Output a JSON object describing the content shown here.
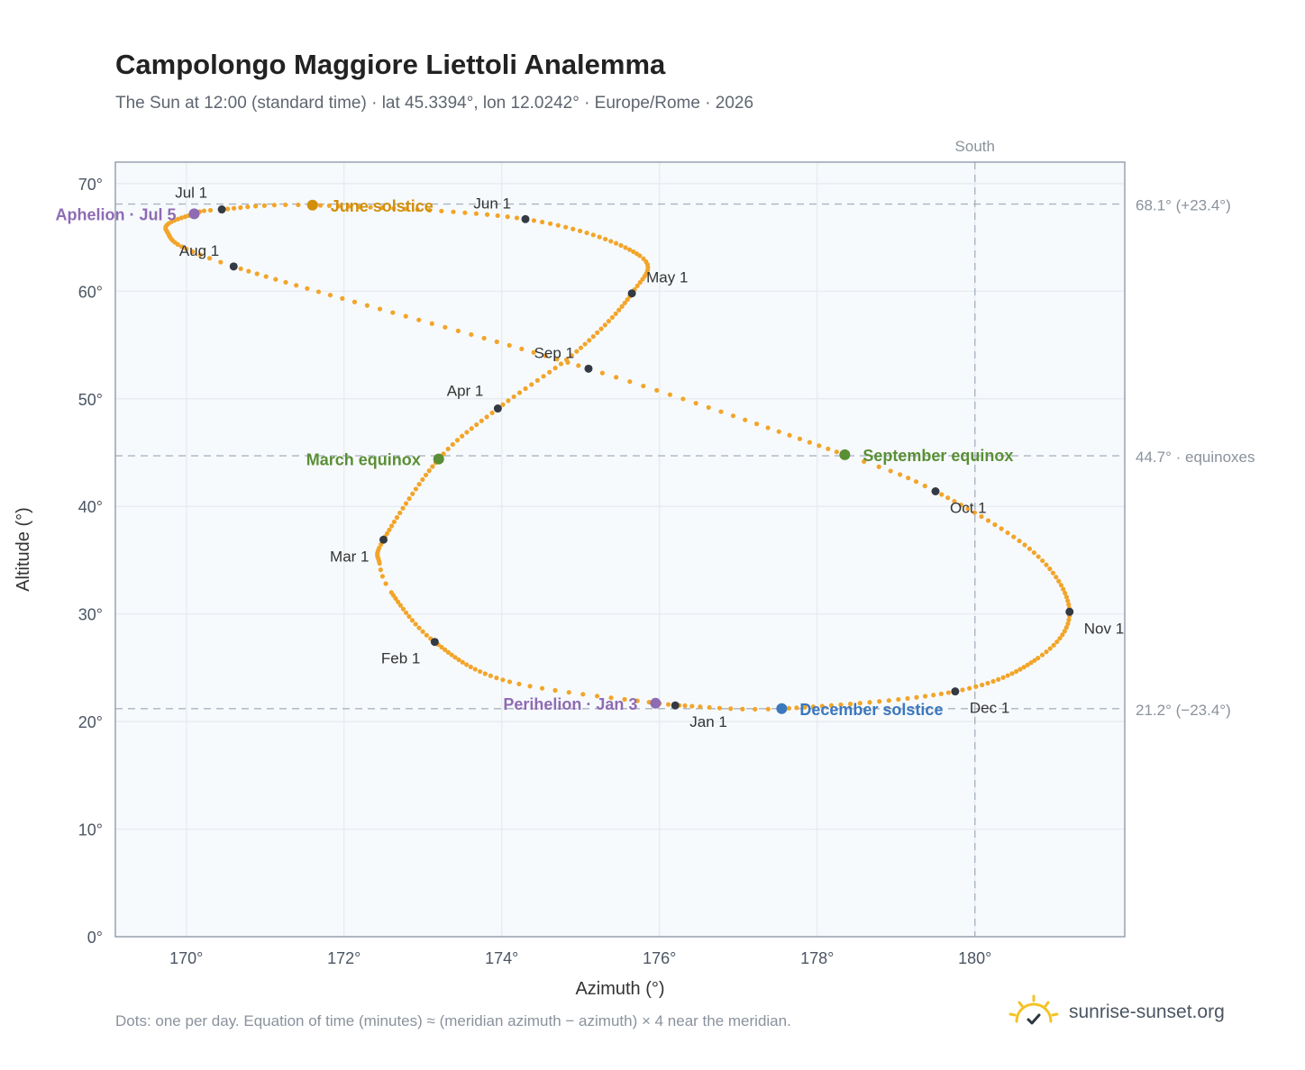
{
  "title": "Campolongo Maggiore Liettoli Analemma",
  "subtitle": "The Sun at 12:00 (standard time) · lat 45.3394°, lon 12.0242° · Europe/Rome · 2026",
  "footnote": "Dots: one per day. Equation of time (minutes) ≈ (meridian azimuth − azimuth) × 4 near the meridian.",
  "brand": {
    "text": "sunrise-sunset.org",
    "icon": "sun-logo-icon"
  },
  "colors": {
    "path": "#f2a52a",
    "month_marker": "#343a44",
    "aphelion": "#8e6bb3",
    "perihelion": "#8e6bb3",
    "june_solstice": "#d18f0c",
    "december_solstice": "#3b78bd",
    "equinox": "#5a8f35",
    "plot_bg": "#f7fafd",
    "grid": "#e6eaef",
    "reference": "#aab4c0"
  },
  "chart_data": {
    "type": "scatter",
    "title": "Campolongo Maggiore Liettoli Analemma",
    "xlabel": "Azimuth (°)",
    "ylabel": "Altitude (°)",
    "xlim": [
      169.1,
      181.9
    ],
    "ylim": [
      0,
      72
    ],
    "x_ticks": [
      170,
      172,
      174,
      176,
      178,
      180
    ],
    "x_tick_labels": [
      "170°",
      "172°",
      "174°",
      "176°",
      "178°",
      "180°"
    ],
    "y_ticks": [
      0,
      10,
      20,
      30,
      40,
      50,
      60,
      70
    ],
    "y_tick_labels": [
      "0°",
      "10°",
      "20°",
      "30°",
      "40°",
      "50°",
      "60°",
      "70°"
    ],
    "grid": true,
    "south_line": {
      "azimuth": 180,
      "label": "South"
    },
    "reference_lines": [
      {
        "altitude": 68.1,
        "label": "68.1° (+23.4°)"
      },
      {
        "altitude": 44.7,
        "label": "44.7° · equinoxes"
      },
      {
        "altitude": 21.2,
        "label": "21.2° (−23.4°)"
      }
    ],
    "path_keypoints": [
      {
        "day": 1,
        "az": 176.2,
        "alt": 21.5
      },
      {
        "day": 15,
        "az": 174.1,
        "alt": 23.7
      },
      {
        "day": 32,
        "az": 173.15,
        "alt": 27.4
      },
      {
        "day": 46,
        "az": 172.6,
        "alt": 32.0
      },
      {
        "day": 50,
        "az": 172.45,
        "alt": 34.7
      },
      {
        "day": 60,
        "az": 172.5,
        "alt": 36.9
      },
      {
        "day": 79,
        "az": 173.2,
        "alt": 44.4
      },
      {
        "day": 91,
        "az": 173.95,
        "alt": 49.1
      },
      {
        "day": 105,
        "az": 174.95,
        "alt": 54.4
      },
      {
        "day": 121,
        "az": 175.65,
        "alt": 59.8
      },
      {
        "day": 133,
        "az": 175.75,
        "alt": 63.3
      },
      {
        "day": 152,
        "az": 174.3,
        "alt": 66.7
      },
      {
        "day": 172,
        "az": 171.6,
        "alt": 68.0
      },
      {
        "day": 182,
        "az": 170.45,
        "alt": 67.6
      },
      {
        "day": 186,
        "az": 170.1,
        "alt": 67.2
      },
      {
        "day": 198,
        "az": 169.75,
        "alt": 65.6
      },
      {
        "day": 213,
        "az": 170.6,
        "alt": 62.3
      },
      {
        "day": 244,
        "az": 175.1,
        "alt": 52.8
      },
      {
        "day": 266,
        "az": 178.35,
        "alt": 44.8
      },
      {
        "day": 274,
        "az": 179.5,
        "alt": 41.4
      },
      {
        "day": 290,
        "az": 180.75,
        "alt": 35.7
      },
      {
        "day": 305,
        "az": 181.2,
        "alt": 30.2
      },
      {
        "day": 318,
        "az": 180.8,
        "alt": 25.9
      },
      {
        "day": 335,
        "az": 179.75,
        "alt": 22.8
      },
      {
        "day": 355,
        "az": 177.55,
        "alt": 21.2
      },
      {
        "day": 365,
        "az": 176.25,
        "alt": 21.5
      }
    ],
    "month_markers": [
      {
        "label": "Jan 1",
        "az": 176.2,
        "alt": 21.5,
        "anchor": "start",
        "dx": 16,
        "dy": 24
      },
      {
        "label": "Feb 1",
        "az": 173.15,
        "alt": 27.4,
        "anchor": "end",
        "dx": -16,
        "dy": 24
      },
      {
        "label": "Mar 1",
        "az": 172.5,
        "alt": 36.9,
        "anchor": "end",
        "dx": -16,
        "dy": 24
      },
      {
        "label": "Apr 1",
        "az": 173.95,
        "alt": 49.1,
        "anchor": "end",
        "dx": -16,
        "dy": -14
      },
      {
        "label": "May 1",
        "az": 175.65,
        "alt": 59.8,
        "anchor": "start",
        "dx": 16,
        "dy": -12
      },
      {
        "label": "Jun 1",
        "az": 174.3,
        "alt": 66.7,
        "anchor": "end",
        "dx": -16,
        "dy": -12
      },
      {
        "label": "Jul 1",
        "az": 170.45,
        "alt": 67.6,
        "anchor": "end",
        "dx": -16,
        "dy": -13
      },
      {
        "label": "Aug 1",
        "az": 170.6,
        "alt": 62.3,
        "anchor": "end",
        "dx": -16,
        "dy": -12
      },
      {
        "label": "Sep 1",
        "az": 175.1,
        "alt": 52.8,
        "anchor": "end",
        "dx": -16,
        "dy": -12
      },
      {
        "label": "Oct 1",
        "az": 179.5,
        "alt": 41.4,
        "anchor": "start",
        "dx": 16,
        "dy": 24
      },
      {
        "label": "Nov 1",
        "az": 181.2,
        "alt": 30.2,
        "anchor": "start",
        "dx": 16,
        "dy": 24
      },
      {
        "label": "Dec 1",
        "az": 179.75,
        "alt": 22.8,
        "anchor": "start",
        "dx": 16,
        "dy": 24
      }
    ],
    "events": [
      {
        "label": "Aphelion · Jul 5",
        "az": 170.1,
        "alt": 67.2,
        "color": "#8e6bb3",
        "anchor": "end",
        "dx": -20,
        "dy": 7
      },
      {
        "label": "June solstice",
        "az": 171.6,
        "alt": 68.0,
        "color": "#d18f0c",
        "anchor": "start",
        "dx": 20,
        "dy": 7
      },
      {
        "label": "March equinox",
        "az": 173.2,
        "alt": 44.4,
        "color": "#5a8f35",
        "anchor": "end",
        "dx": -20,
        "dy": 7
      },
      {
        "label": "September equinox",
        "az": 178.35,
        "alt": 44.8,
        "color": "#5a8f35",
        "anchor": "start",
        "dx": 20,
        "dy": 7
      },
      {
        "label": "Perihelion · Jan 3",
        "az": 175.95,
        "alt": 21.7,
        "color": "#8e6bb3",
        "anchor": "end",
        "dx": -20,
        "dy": 7
      },
      {
        "label": "December solstice",
        "az": 177.55,
        "alt": 21.2,
        "color": "#3b78bd",
        "anchor": "start",
        "dx": 20,
        "dy": 7
      }
    ]
  }
}
